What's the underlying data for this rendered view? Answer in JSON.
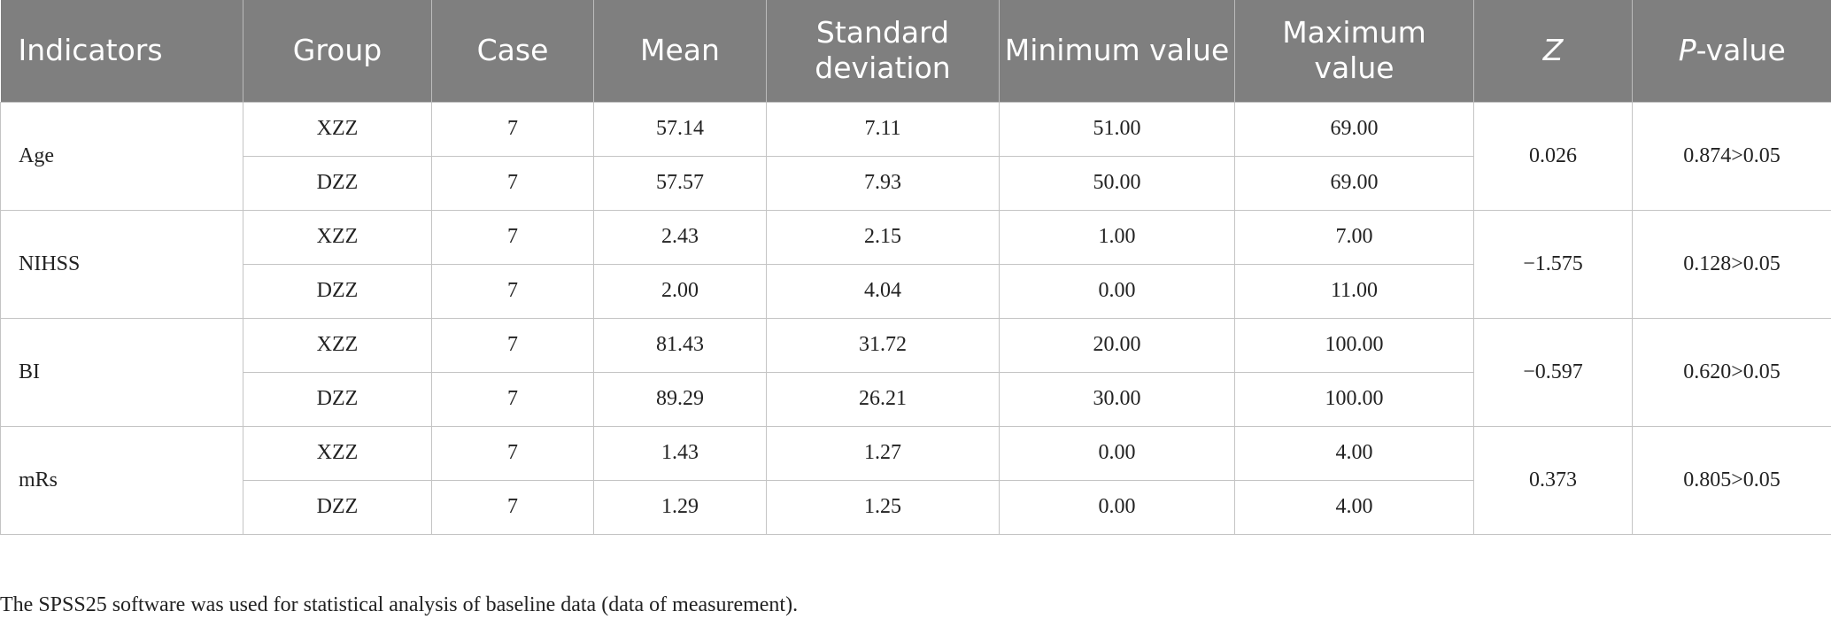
{
  "table": {
    "headers": [
      "Indicators",
      "Group",
      "Case",
      "Mean",
      "Standard deviation",
      "Minimum value",
      "Maximum value",
      "Z",
      "P-value"
    ],
    "rows": [
      {
        "indicator": "Age",
        "z": "0.026",
        "p": "0.874>0.05",
        "groups": [
          [
            "XZZ",
            "7",
            "57.14",
            "7.11",
            "51.00",
            "69.00"
          ],
          [
            "DZZ",
            "7",
            "57.57",
            "7.93",
            "50.00",
            "69.00"
          ]
        ]
      },
      {
        "indicator": "NIHSS",
        "z": "−1.575",
        "p": "0.128>0.05",
        "groups": [
          [
            "XZZ",
            "7",
            "2.43",
            "2.15",
            "1.00",
            "7.00"
          ],
          [
            "DZZ",
            "7",
            "2.00",
            "4.04",
            "0.00",
            "11.00"
          ]
        ]
      },
      {
        "indicator": "BI",
        "z": "−0.597",
        "p": "0.620>0.05",
        "groups": [
          [
            "XZZ",
            "7",
            "81.43",
            "31.72",
            "20.00",
            "100.00"
          ],
          [
            "DZZ",
            "7",
            "89.29",
            "26.21",
            "30.00",
            "100.00"
          ]
        ]
      },
      {
        "indicator": "mRs",
        "z": "0.373",
        "p": "0.805>0.05",
        "groups": [
          [
            "XZZ",
            "7",
            "1.43",
            "1.27",
            "0.00",
            "4.00"
          ],
          [
            "DZZ",
            "7",
            "1.29",
            "1.25",
            "0.00",
            "4.00"
          ]
        ]
      }
    ]
  },
  "note": "The SPSS25 software was used for statistical analysis of baseline data (data of measurement)."
}
